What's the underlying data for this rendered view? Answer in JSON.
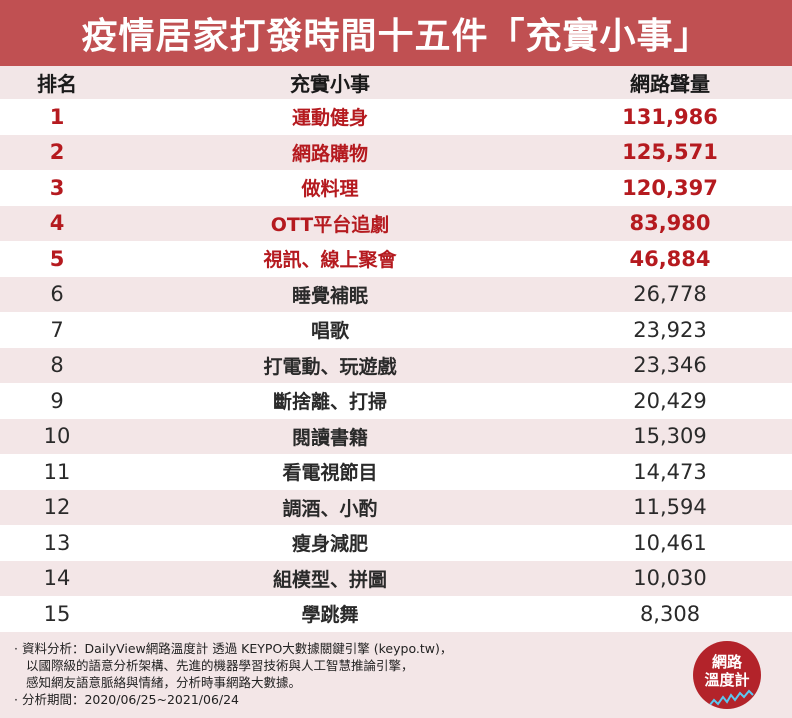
{
  "title": "疫情居家打發時間十五件「充實小事」",
  "table": {
    "headers": {
      "rank": "排名",
      "item": "充實小事",
      "volume": "網路聲量"
    },
    "rows": [
      {
        "rank": "1",
        "item": "運動健身",
        "volume": "131,986"
      },
      {
        "rank": "2",
        "item": "網路購物",
        "volume": "125,571"
      },
      {
        "rank": "3",
        "item": "做料理",
        "volume": "120,397"
      },
      {
        "rank": "4",
        "item": "OTT平台追劇",
        "volume": "83,980"
      },
      {
        "rank": "5",
        "item": "視訊、線上聚會",
        "volume": "46,884"
      },
      {
        "rank": "6",
        "item": "睡覺補眠",
        "volume": "26,778"
      },
      {
        "rank": "7",
        "item": "唱歌",
        "volume": "23,923"
      },
      {
        "rank": "8",
        "item": "打電動、玩遊戲",
        "volume": "23,346"
      },
      {
        "rank": "9",
        "item": "斷捨離、打掃",
        "volume": "20,429"
      },
      {
        "rank": "10",
        "item": "閱讀書籍",
        "volume": "15,309"
      },
      {
        "rank": "11",
        "item": "看電視節目",
        "volume": "14,473"
      },
      {
        "rank": "12",
        "item": "調酒、小酌",
        "volume": "11,594"
      },
      {
        "rank": "13",
        "item": "瘦身減肥",
        "volume": "10,461"
      },
      {
        "rank": "14",
        "item": "組模型、拼圖",
        "volume": "10,030"
      },
      {
        "rank": "15",
        "item": "學跳舞",
        "volume": "8,308"
      }
    ]
  },
  "footer": {
    "notes": [
      "· 資料分析：DailyView網路溫度計 透過 KEYPO大數據關鍵引擎 (keypo.tw)，",
      "以國際級的語意分析架構、先進的機器學習技術與人工智慧推論引擎，",
      "感知網友語意脈絡與情緒，分析時事網路大數據。",
      "· 分析期間：2020/06/25~2021/06/24"
    ],
    "logo": {
      "line1": "網路",
      "line2": "溫度計"
    }
  },
  "colors": {
    "title_bar": "#c05052",
    "highlight_text": "#b51a1f",
    "row_alt": "#f3e6e7",
    "logo": "#b3232a"
  },
  "chart_data": {
    "type": "table",
    "title": "疫情居家打發時間十五件「充實小事」",
    "columns": [
      "排名",
      "充實小事",
      "網路聲量"
    ],
    "categories": [
      "運動健身",
      "網路購物",
      "做料理",
      "OTT平台追劇",
      "視訊、線上聚會",
      "睡覺補眠",
      "唱歌",
      "打電動、玩遊戲",
      "斷捨離、打掃",
      "閱讀書籍",
      "看電視節目",
      "調酒、小酌",
      "瘦身減肥",
      "組模型、拼圖",
      "學跳舞"
    ],
    "values": [
      131986,
      125571,
      120397,
      83980,
      46884,
      26778,
      23923,
      23346,
      20429,
      15309,
      14473,
      11594,
      10461,
      10030,
      8308
    ],
    "highlighted_ranks": [
      1,
      2,
      3,
      4,
      5
    ],
    "notes": [
      "資料分析：DailyView網路溫度計 透過 KEYPO大數據關鍵引擎 (keypo.tw)",
      "分析期間：2020/06/25~2021/06/24"
    ]
  }
}
